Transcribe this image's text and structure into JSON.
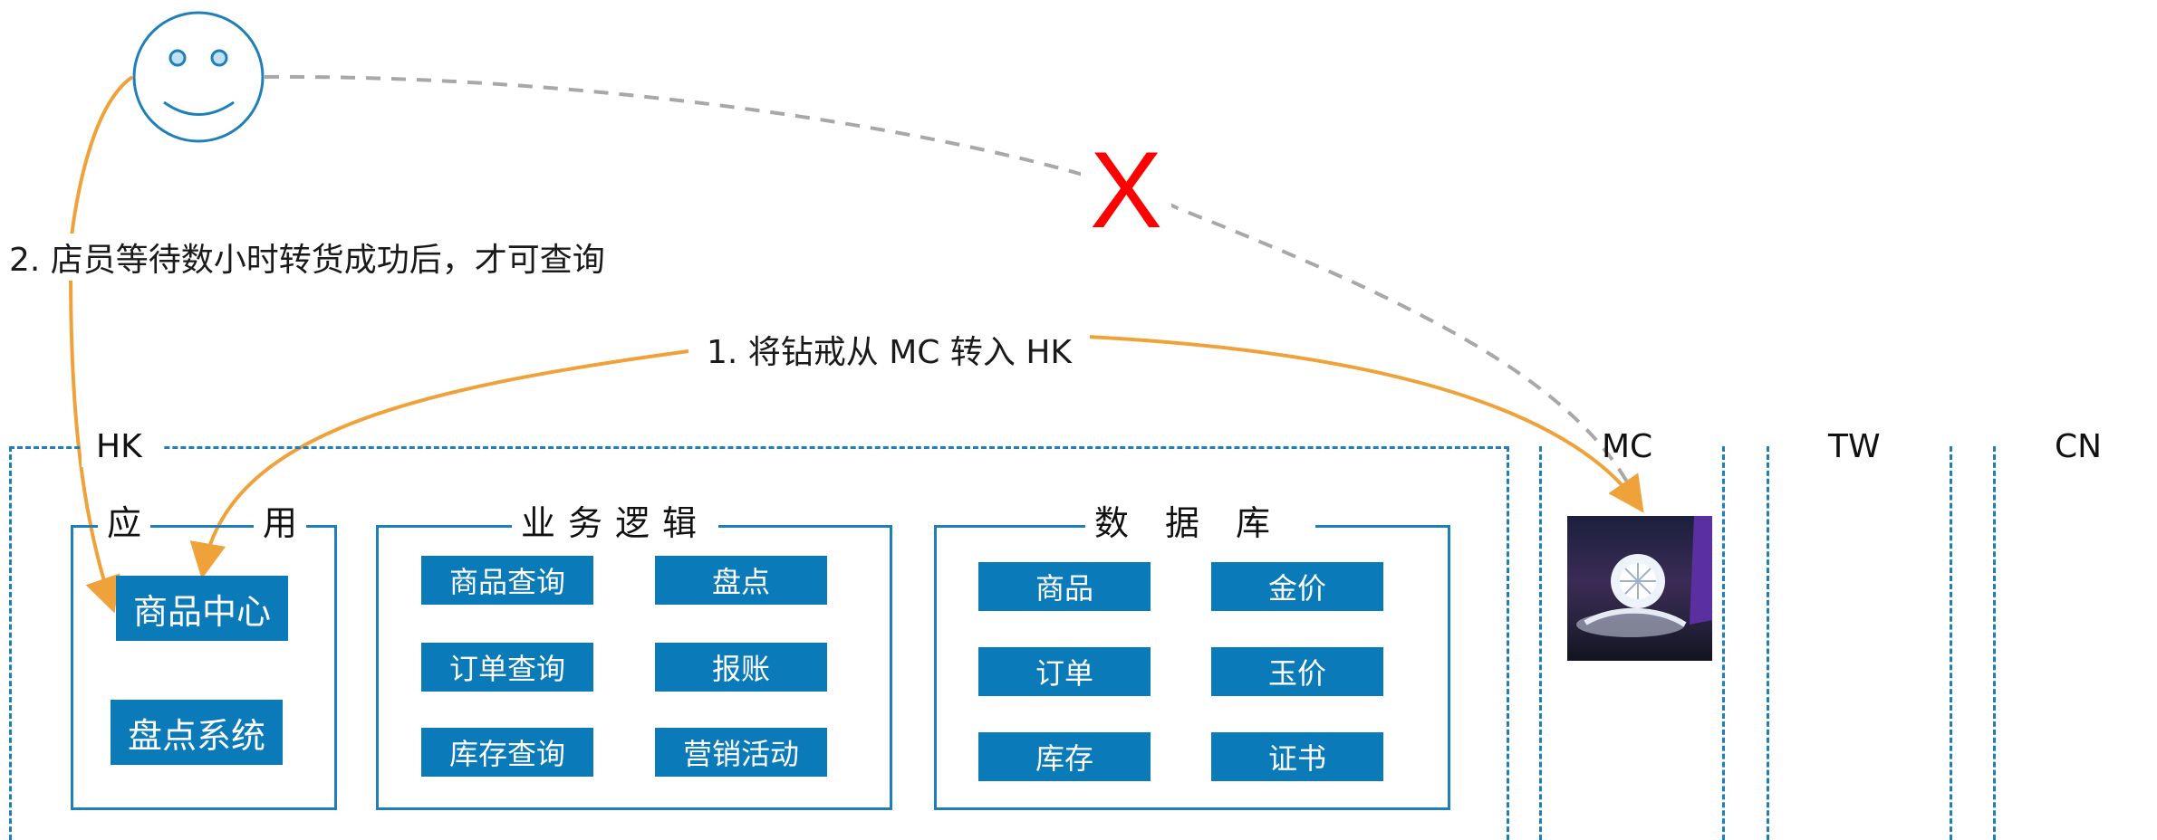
{
  "regions": {
    "hk": "HK",
    "mc": "MC",
    "tw": "TW",
    "cn": "CN"
  },
  "groups": {
    "app": {
      "title_left": "应",
      "title_right": "用",
      "items": [
        "商品中心",
        "盘点系统"
      ]
    },
    "logic": {
      "title": "业务逻辑",
      "items": [
        "商品查询",
        "盘点",
        "订单查询",
        "报账",
        "库存查询",
        "营销活动"
      ]
    },
    "db": {
      "title": "数据库",
      "items": [
        "商品",
        "金价",
        "订单",
        "玉价",
        "库存",
        "证书"
      ]
    }
  },
  "annotations": {
    "step1": "1. 将钻戒从 MC 转入 HK",
    "step2": "2. 店员等待数小时转货成功后，才可查询",
    "blocked_mark": "X"
  },
  "icons": {
    "customer": "smiley-face-icon",
    "product_photo": "diamond-ring-photo"
  },
  "colors": {
    "brand_blue": "#0b7ab8",
    "arrow_orange": "#f0a23a",
    "blocked_red": "#ff0000",
    "dashed_gray": "#a8a8a8"
  }
}
